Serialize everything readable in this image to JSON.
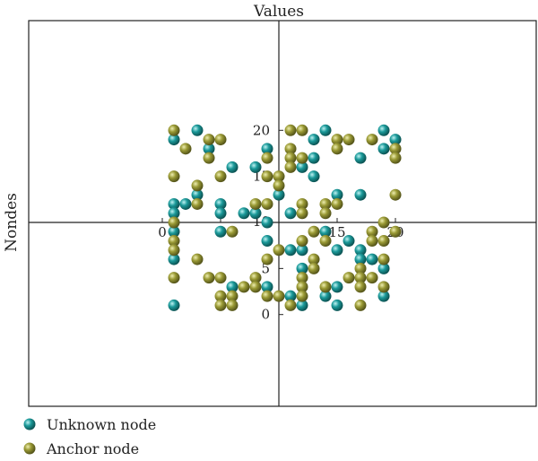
{
  "chart_data": {
    "type": "scatter",
    "title": "Values",
    "xlabel": "",
    "ylabel": "Nondes",
    "xlim": [
      0,
      20
    ],
    "ylim": [
      0,
      20
    ],
    "ticks": {
      "x": [
        {
          "value": 0,
          "label": "0"
        },
        {
          "value": 5,
          "label": "5"
        },
        {
          "value": 10,
          "label": "10"
        },
        {
          "value": 15,
          "label": "15"
        },
        {
          "value": 20,
          "label": "20"
        }
      ],
      "y": [
        {
          "value": 0,
          "label": "0"
        },
        {
          "value": 5,
          "label": "5"
        },
        {
          "value": 10,
          "label": "10"
        },
        {
          "value": 15,
          "label": "15"
        },
        {
          "value": 20,
          "label": "20"
        }
      ]
    },
    "grid": false,
    "legend_position": "bottom-left",
    "colors": {
      "unknown": "#1b8f8f",
      "anchor": "#8c8c2a"
    },
    "series": [
      {
        "name": "Unknown node",
        "color": "#1b8f8f",
        "points": [
          {
            "x": 3,
            "y": 20
          },
          {
            "x": 1,
            "y": 19
          },
          {
            "x": 4,
            "y": 18
          },
          {
            "x": 9,
            "y": 18
          },
          {
            "x": 6,
            "y": 16
          },
          {
            "x": 8,
            "y": 16
          },
          {
            "x": 3,
            "y": 13
          },
          {
            "x": 10,
            "y": 13
          },
          {
            "x": 1,
            "y": 12
          },
          {
            "x": 2,
            "y": 12
          },
          {
            "x": 5,
            "y": 12
          },
          {
            "x": 1,
            "y": 11
          },
          {
            "x": 5,
            "y": 11
          },
          {
            "x": 7,
            "y": 11
          },
          {
            "x": 8,
            "y": 11
          },
          {
            "x": 9,
            "y": 10
          },
          {
            "x": 1,
            "y": 9
          },
          {
            "x": 5,
            "y": 9
          },
          {
            "x": 9,
            "y": 8
          },
          {
            "x": 1,
            "y": 6
          },
          {
            "x": 6,
            "y": 3
          },
          {
            "x": 9,
            "y": 3
          },
          {
            "x": 1,
            "y": 1
          },
          {
            "x": 14,
            "y": 20
          },
          {
            "x": 19,
            "y": 20
          },
          {
            "x": 13,
            "y": 19
          },
          {
            "x": 20,
            "y": 19
          },
          {
            "x": 19,
            "y": 18
          },
          {
            "x": 13,
            "y": 17
          },
          {
            "x": 17,
            "y": 17
          },
          {
            "x": 12,
            "y": 16
          },
          {
            "x": 13,
            "y": 15
          },
          {
            "x": 15,
            "y": 13
          },
          {
            "x": 17,
            "y": 13
          },
          {
            "x": 11,
            "y": 11
          },
          {
            "x": 14,
            "y": 9
          },
          {
            "x": 16,
            "y": 8
          },
          {
            "x": 11,
            "y": 7
          },
          {
            "x": 12,
            "y": 7
          },
          {
            "x": 15,
            "y": 7
          },
          {
            "x": 17,
            "y": 7
          },
          {
            "x": 17,
            "y": 6
          },
          {
            "x": 18,
            "y": 6
          },
          {
            "x": 12,
            "y": 5
          },
          {
            "x": 19,
            "y": 5
          },
          {
            "x": 15,
            "y": 3
          },
          {
            "x": 11,
            "y": 2
          },
          {
            "x": 14,
            "y": 2
          },
          {
            "x": 19,
            "y": 2
          },
          {
            "x": 12,
            "y": 1
          },
          {
            "x": 15,
            "y": 1
          }
        ]
      },
      {
        "name": "Anchor node",
        "color": "#8c8c2a",
        "points": [
          {
            "x": 1,
            "y": 20
          },
          {
            "x": 4,
            "y": 19
          },
          {
            "x": 5,
            "y": 19
          },
          {
            "x": 2,
            "y": 18
          },
          {
            "x": 4,
            "y": 17
          },
          {
            "x": 9,
            "y": 17
          },
          {
            "x": 1,
            "y": 15
          },
          {
            "x": 5,
            "y": 15
          },
          {
            "x": 9,
            "y": 15
          },
          {
            "x": 10,
            "y": 15
          },
          {
            "x": 3,
            "y": 14
          },
          {
            "x": 10,
            "y": 14
          },
          {
            "x": 3,
            "y": 12
          },
          {
            "x": 8,
            "y": 12
          },
          {
            "x": 9,
            "y": 12
          },
          {
            "x": 1,
            "y": 10
          },
          {
            "x": 6,
            "y": 9
          },
          {
            "x": 1,
            "y": 8
          },
          {
            "x": 1,
            "y": 7
          },
          {
            "x": 3,
            "y": 6
          },
          {
            "x": 9,
            "y": 6
          },
          {
            "x": 1,
            "y": 4
          },
          {
            "x": 4,
            "y": 4
          },
          {
            "x": 5,
            "y": 4
          },
          {
            "x": 8,
            "y": 4
          },
          {
            "x": 7,
            "y": 3
          },
          {
            "x": 8,
            "y": 3
          },
          {
            "x": 5,
            "y": 2
          },
          {
            "x": 6,
            "y": 2
          },
          {
            "x": 9,
            "y": 2
          },
          {
            "x": 5,
            "y": 1
          },
          {
            "x": 6,
            "y": 1
          },
          {
            "x": 11,
            "y": 20
          },
          {
            "x": 12,
            "y": 20
          },
          {
            "x": 15,
            "y": 19
          },
          {
            "x": 16,
            "y": 19
          },
          {
            "x": 18,
            "y": 19
          },
          {
            "x": 11,
            "y": 18
          },
          {
            "x": 15,
            "y": 18
          },
          {
            "x": 20,
            "y": 18
          },
          {
            "x": 11,
            "y": 17
          },
          {
            "x": 12,
            "y": 17
          },
          {
            "x": 20,
            "y": 17
          },
          {
            "x": 11,
            "y": 16
          },
          {
            "x": 20,
            "y": 13
          },
          {
            "x": 12,
            "y": 12
          },
          {
            "x": 14,
            "y": 12
          },
          {
            "x": 15,
            "y": 12
          },
          {
            "x": 12,
            "y": 11
          },
          {
            "x": 14,
            "y": 11
          },
          {
            "x": 19,
            "y": 10
          },
          {
            "x": 13,
            "y": 9
          },
          {
            "x": 18,
            "y": 9
          },
          {
            "x": 20,
            "y": 9
          },
          {
            "x": 12,
            "y": 8
          },
          {
            "x": 14,
            "y": 8
          },
          {
            "x": 18,
            "y": 8
          },
          {
            "x": 19,
            "y": 8
          },
          {
            "x": 10,
            "y": 7
          },
          {
            "x": 13,
            "y": 6
          },
          {
            "x": 19,
            "y": 6
          },
          {
            "x": 13,
            "y": 5
          },
          {
            "x": 17,
            "y": 5
          },
          {
            "x": 12,
            "y": 4
          },
          {
            "x": 16,
            "y": 4
          },
          {
            "x": 17,
            "y": 4
          },
          {
            "x": 18,
            "y": 4
          },
          {
            "x": 12,
            "y": 3
          },
          {
            "x": 14,
            "y": 3
          },
          {
            "x": 17,
            "y": 3
          },
          {
            "x": 19,
            "y": 3
          },
          {
            "x": 10,
            "y": 2
          },
          {
            "x": 12,
            "y": 2
          },
          {
            "x": 11,
            "y": 1
          },
          {
            "x": 17,
            "y": 1
          }
        ]
      }
    ]
  }
}
